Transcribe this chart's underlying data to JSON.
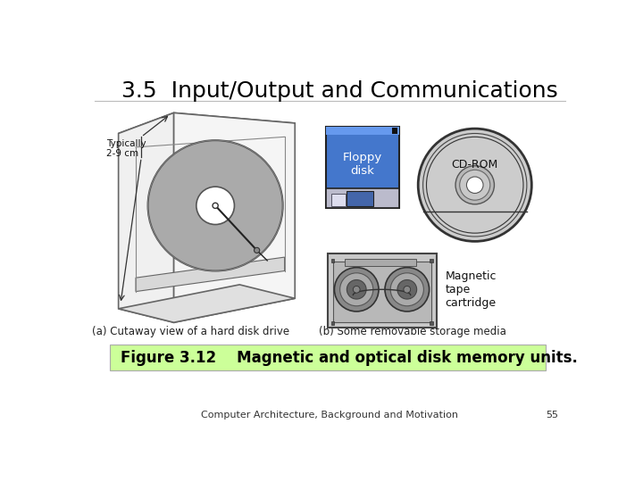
{
  "title": "3.5  Input/Output and Communications",
  "title_fontsize": 18,
  "fig_caption": "Figure 3.12    Magnetic and optical disk memory units.",
  "caption_fontsize": 12,
  "caption_bg": "#ccff99",
  "footer_text": "Computer Architecture, Background and Motivation",
  "footer_page": "55",
  "footer_fontsize": 8,
  "sub_a_label": "(a) Cutaway view of a hard disk drive",
  "sub_b_label": "(b) Some removable storage media",
  "typically_label": "Typically\n2-9 cm",
  "floppy_label": "Floppy\ndisk",
  "cdrom_label": "CD-ROM",
  "tape_label": "Magnetic\ntape\ncartridge",
  "bg_color": "#ffffff",
  "disk_color": "#aaaaaa",
  "box_color": "#dddddd",
  "floppy_blue": "#4477cc",
  "floppy_blue_light": "#6699ee",
  "cd_gray": "#cccccc",
  "tape_gray": "#c8c8c8"
}
